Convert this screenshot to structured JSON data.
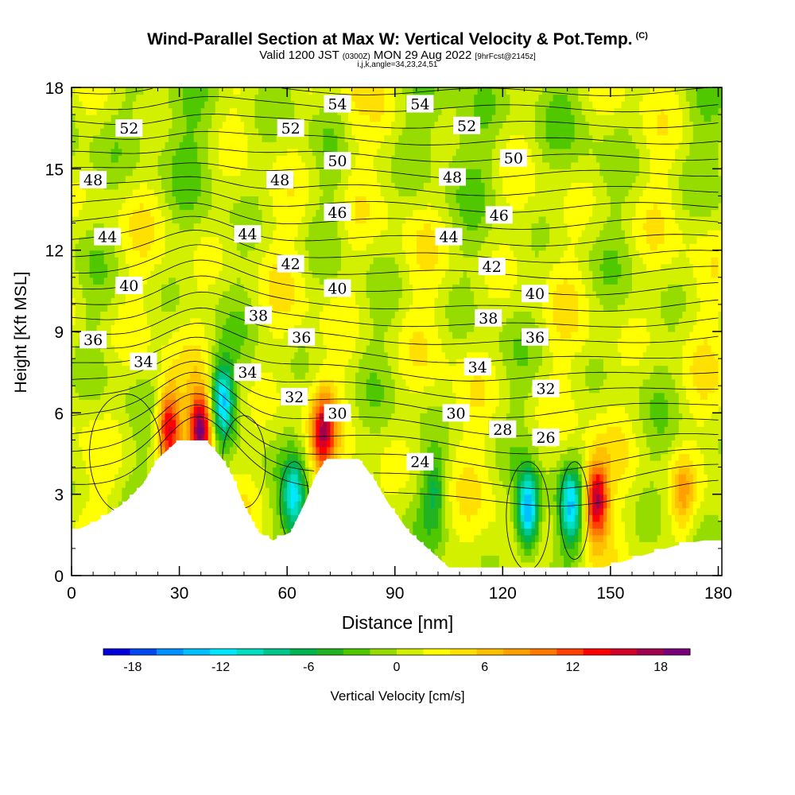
{
  "title": {
    "main": "Wind-Parallel Section at Max W: Vertical Velocity & Pot.Temp.",
    "copyright": "(C)",
    "valid_prefix": "Valid 1200 JST",
    "valid_utc": "(0300Z)",
    "valid_date": "MON 29 Aug 2022",
    "forecast": "[9hrFcst@2145z]",
    "indices": "i,j,k,angle=34,23,24,51"
  },
  "colorbar": {
    "label": "Vertical Velocity [cm/s]",
    "ticks": [
      "-18",
      "-12",
      "-6",
      "0",
      "6",
      "12",
      "18"
    ],
    "tick_values": [
      -18,
      -12,
      -6,
      0,
      6,
      12,
      18
    ],
    "min": -20,
    "max": 20,
    "colors": [
      "#0000dd",
      "#0048f0",
      "#0090ff",
      "#00c0ff",
      "#00e8ff",
      "#00e0c0",
      "#00c88c",
      "#00b450",
      "#22b420",
      "#50c800",
      "#96dc00",
      "#d2f000",
      "#ffff00",
      "#ffe000",
      "#ffc000",
      "#ffa000",
      "#ff7800",
      "#ff4000",
      "#ff0000",
      "#d40028",
      "#a0004c",
      "#780078"
    ]
  },
  "chart_data": {
    "type": "heatmap",
    "title": "Wind-Parallel Section at Max W: Vertical Velocity & Pot.Temp.",
    "xlabel": "Distance [nm]",
    "ylabel": "Height [Kft MSL]",
    "xlim": [
      0,
      181
    ],
    "ylim": [
      0,
      18
    ],
    "xticks": [
      0,
      30,
      60,
      90,
      120,
      150,
      180
    ],
    "yticks": [
      0,
      3,
      6,
      9,
      12,
      15,
      18
    ],
    "field": "Vertical Velocity [cm/s]",
    "features": {
      "updrafts": [
        {
          "x": 36,
          "y": 5.3,
          "w": 18
        },
        {
          "x": 27,
          "y": 5.5,
          "w": 14
        },
        {
          "x": 146,
          "y": 2.8,
          "w": 16
        },
        {
          "x": 70,
          "y": 5.3,
          "w": 13
        },
        {
          "x": 170,
          "y": 3.0,
          "w": 6
        }
      ],
      "downdrafts": [
        {
          "x": 42,
          "y": 6.5,
          "w": -14
        },
        {
          "x": 127,
          "y": 2.4,
          "w": -17
        },
        {
          "x": 139,
          "y": 2.5,
          "w": -12
        },
        {
          "x": 62,
          "y": 2.8,
          "w": -11
        },
        {
          "x": 101,
          "y": 3.2,
          "w": -6
        }
      ]
    },
    "terrain": [
      {
        "x": 0,
        "height": 1.6
      },
      {
        "x": 7,
        "height": 2.0
      },
      {
        "x": 15,
        "height": 2.7
      },
      {
        "x": 20,
        "height": 3.4
      },
      {
        "x": 24,
        "height": 4.3
      },
      {
        "x": 29,
        "height": 4.9
      },
      {
        "x": 38,
        "height": 4.9
      },
      {
        "x": 42,
        "height": 4.3
      },
      {
        "x": 45,
        "height": 3.6
      },
      {
        "x": 48,
        "height": 2.6
      },
      {
        "x": 52,
        "height": 1.6
      },
      {
        "x": 56,
        "height": 1.3
      },
      {
        "x": 61,
        "height": 1.6
      },
      {
        "x": 65,
        "height": 2.7
      },
      {
        "x": 68,
        "height": 3.7
      },
      {
        "x": 71,
        "height": 4.3
      },
      {
        "x": 80,
        "height": 4.3
      },
      {
        "x": 84,
        "height": 3.6
      },
      {
        "x": 88,
        "height": 2.7
      },
      {
        "x": 94,
        "height": 1.6
      },
      {
        "x": 100,
        "height": 0.9
      },
      {
        "x": 105,
        "height": 0.3
      },
      {
        "x": 148,
        "height": 0.3
      },
      {
        "x": 158,
        "height": 0.7
      },
      {
        "x": 168,
        "height": 1.1
      },
      {
        "x": 176,
        "height": 1.3
      },
      {
        "x": 181,
        "height": 1.3
      }
    ],
    "contour_labels": [
      {
        "text": "52",
        "x": 16,
        "y": 16.5
      },
      {
        "text": "52",
        "x": 61,
        "y": 16.5
      },
      {
        "text": "52",
        "x": 110,
        "y": 16.6
      },
      {
        "text": "54",
        "x": 74,
        "y": 17.4
      },
      {
        "text": "54",
        "x": 97,
        "y": 17.4
      },
      {
        "text": "50",
        "x": 74,
        "y": 15.3
      },
      {
        "text": "50",
        "x": 123,
        "y": 15.4
      },
      {
        "text": "48",
        "x": 6,
        "y": 14.6
      },
      {
        "text": "48",
        "x": 58,
        "y": 14.6
      },
      {
        "text": "48",
        "x": 106,
        "y": 14.7
      },
      {
        "text": "46",
        "x": 74,
        "y": 13.4
      },
      {
        "text": "46",
        "x": 119,
        "y": 13.3
      },
      {
        "text": "44",
        "x": 10,
        "y": 12.5
      },
      {
        "text": "44",
        "x": 49,
        "y": 12.6
      },
      {
        "text": "44",
        "x": 105,
        "y": 12.5
      },
      {
        "text": "42",
        "x": 61,
        "y": 11.5
      },
      {
        "text": "42",
        "x": 117,
        "y": 11.4
      },
      {
        "text": "40",
        "x": 16,
        "y": 10.7
      },
      {
        "text": "40",
        "x": 74,
        "y": 10.6
      },
      {
        "text": "40",
        "x": 129,
        "y": 10.4
      },
      {
        "text": "38",
        "x": 52,
        "y": 9.6
      },
      {
        "text": "38",
        "x": 116,
        "y": 9.5
      },
      {
        "text": "36",
        "x": 6,
        "y": 8.7
      },
      {
        "text": "36",
        "x": 64,
        "y": 8.8
      },
      {
        "text": "36",
        "x": 129,
        "y": 8.8
      },
      {
        "text": "34",
        "x": 20,
        "y": 7.9
      },
      {
        "text": "34",
        "x": 49,
        "y": 7.5
      },
      {
        "text": "34",
        "x": 113,
        "y": 7.7
      },
      {
        "text": "32",
        "x": 62,
        "y": 6.6
      },
      {
        "text": "32",
        "x": 132,
        "y": 6.9
      },
      {
        "text": "30",
        "x": 74,
        "y": 6.0
      },
      {
        "text": "30",
        "x": 107,
        "y": 6.0
      },
      {
        "text": "28",
        "x": 120,
        "y": 5.4
      },
      {
        "text": "26",
        "x": 132,
        "y": 5.1
      },
      {
        "text": "24",
        "x": 97,
        "y": 4.2
      }
    ]
  }
}
